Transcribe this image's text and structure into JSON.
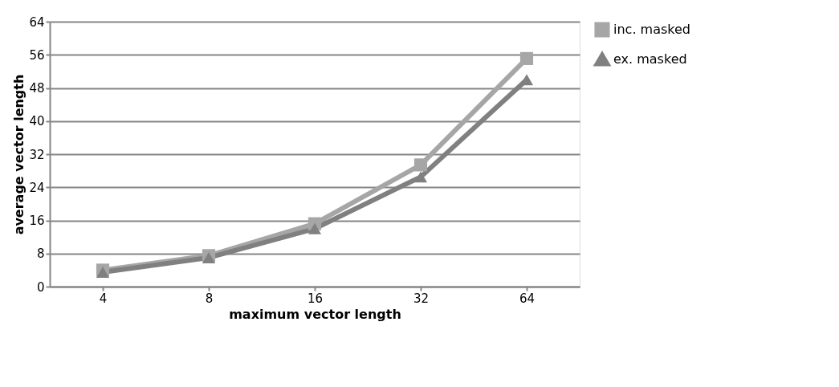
{
  "chart_data": {
    "type": "line",
    "xlabel": "maximum vector length",
    "ylabel": "average vector length",
    "categories": [
      "4",
      "8",
      "16",
      "32",
      "64"
    ],
    "series": [
      {
        "name": "inc. masked",
        "color": "#a6a6a6",
        "marker": "square",
        "values": [
          4,
          7.5,
          15.2,
          29.4,
          55.1
        ]
      },
      {
        "name": "ex. masked",
        "color": "#808080",
        "marker": "triangle",
        "values": [
          3.5,
          7,
          14,
          26.5,
          50
        ]
      }
    ],
    "ylim": [
      0,
      64
    ],
    "yticks": [
      0,
      8,
      16,
      24,
      32,
      40,
      48,
      56,
      64
    ],
    "grid": "y",
    "legend": "right",
    "line_style": "solid"
  }
}
